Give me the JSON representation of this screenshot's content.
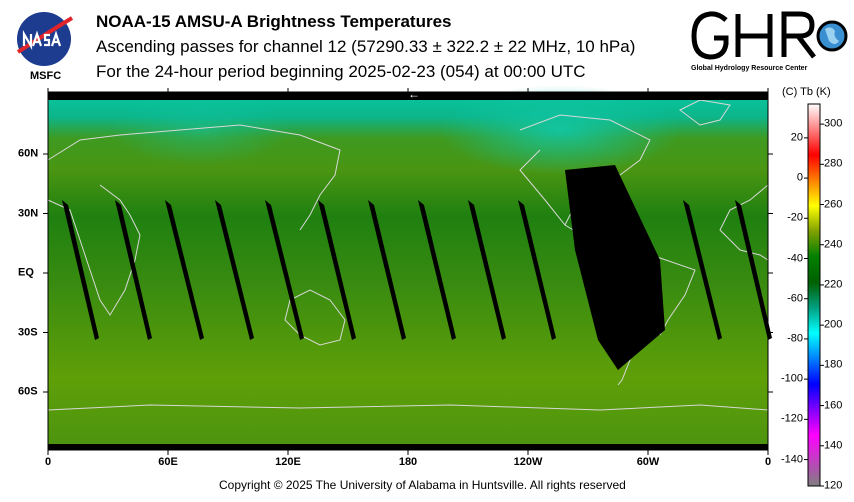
{
  "header": {
    "title": "NOAA-15 AMSU-A Brightness Temperatures",
    "subtitle1": "Ascending passes for channel 12 (57290.33 ± 322.2 ± 22 MHz, 10 hPa)",
    "subtitle2": "For the 24-hour period beginning 2025-02-23 (054) at 00:00 UTC"
  },
  "logos": {
    "nasa": {
      "text": "NASA",
      "label": "MSFC"
    },
    "ghrc": {
      "text": "GHRC",
      "label": "Global Hydrology Resource Center"
    }
  },
  "map": {
    "x_labels": [
      "0",
      "60E",
      "120E",
      "180",
      "120W",
      "60W",
      "0"
    ],
    "y_labels": [
      "60N",
      "30N",
      "EQ",
      "30S",
      "60S"
    ],
    "direction_arrow": "←"
  },
  "colorbar": {
    "header": "(C)  Tb  (K)",
    "celsius_labels": [
      "20",
      "0",
      "-20",
      "-40",
      "-60",
      "-80",
      "-100",
      "-120",
      "-140"
    ],
    "kelvin_labels": [
      "300",
      "280",
      "260",
      "240",
      "220",
      "200",
      "180",
      "160",
      "140",
      "120"
    ],
    "range_k": [
      120,
      310
    ],
    "colors": [
      "#808080",
      "#c040c0",
      "#ff00ff",
      "#8000ff",
      "#0000ff",
      "#0080ff",
      "#00ffff",
      "#00a080",
      "#006000",
      "#008000",
      "#80a000",
      "#ffff00",
      "#ff8000",
      "#ff0000",
      "#ff8080",
      "#ffffff"
    ]
  },
  "footer": {
    "copyright": "Copyright © 2025 The University of Alabama in Huntsville.  All rights reserved"
  }
}
